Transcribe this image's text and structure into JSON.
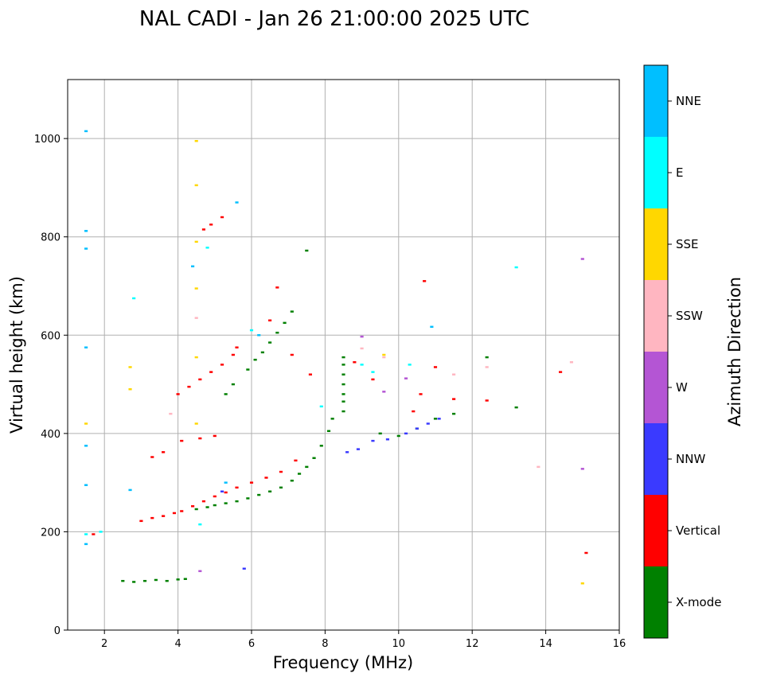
{
  "chart_data": {
    "type": "scatter",
    "title": "NAL CADI - Jan 26 21:00:00 2025 UTC",
    "xlabel": "Frequency (MHz)",
    "ylabel": "Virtual height (km)",
    "xlim": [
      1,
      16
    ],
    "ylim": [
      0,
      1120
    ],
    "xticks": [
      2,
      4,
      6,
      8,
      10,
      12,
      14,
      16
    ],
    "yticks": [
      0,
      200,
      400,
      600,
      800,
      1000
    ],
    "grid": true,
    "colorbar": {
      "label": "Azimuth Direction",
      "categories": [
        {
          "name": "X-mode",
          "color": "#008000"
        },
        {
          "name": "Vertical",
          "color": "#ff0000"
        },
        {
          "name": "NNW",
          "color": "#3a3aff"
        },
        {
          "name": "W",
          "color": "#b455d4"
        },
        {
          "name": "SSW",
          "color": "#ffb6c1"
        },
        {
          "name": "SSE",
          "color": "#ffd700"
        },
        {
          "name": "E",
          "color": "#00ffff"
        },
        {
          "name": "NNE",
          "color": "#00bfff"
        }
      ]
    },
    "series": [
      {
        "name": "X-mode",
        "points": [
          [
            2.5,
            100
          ],
          [
            2.8,
            98
          ],
          [
            3.1,
            100
          ],
          [
            3.4,
            102
          ],
          [
            3.7,
            100
          ],
          [
            4.0,
            103
          ],
          [
            4.2,
            104
          ],
          [
            4.5,
            246
          ],
          [
            4.8,
            250
          ],
          [
            5.0,
            254
          ],
          [
            5.3,
            258
          ],
          [
            5.6,
            262
          ],
          [
            5.9,
            268
          ],
          [
            6.2,
            275
          ],
          [
            6.5,
            282
          ],
          [
            6.8,
            290
          ],
          [
            7.1,
            304
          ],
          [
            7.3,
            318
          ],
          [
            7.5,
            332
          ],
          [
            7.7,
            350
          ],
          [
            7.9,
            375
          ],
          [
            8.1,
            405
          ],
          [
            8.2,
            430
          ],
          [
            8.5,
            445
          ],
          [
            8.5,
            465
          ],
          [
            8.5,
            480
          ],
          [
            8.5,
            500
          ],
          [
            8.5,
            520
          ],
          [
            8.5,
            540
          ],
          [
            8.5,
            555
          ],
          [
            9.5,
            400
          ],
          [
            10.0,
            395
          ],
          [
            10.5,
            410
          ],
          [
            11.0,
            430
          ],
          [
            11.5,
            440
          ],
          [
            12.4,
            555
          ],
          [
            13.2,
            453
          ],
          [
            5.3,
            480
          ],
          [
            5.5,
            500
          ],
          [
            5.9,
            530
          ],
          [
            6.1,
            550
          ],
          [
            6.3,
            565
          ],
          [
            6.5,
            585
          ],
          [
            6.7,
            605
          ],
          [
            6.9,
            625
          ],
          [
            7.1,
            648
          ],
          [
            7.5,
            772
          ]
        ]
      },
      {
        "name": "Vertical",
        "points": [
          [
            1.7,
            195
          ],
          [
            3.0,
            222
          ],
          [
            3.3,
            228
          ],
          [
            3.6,
            232
          ],
          [
            3.9,
            238
          ],
          [
            4.1,
            242
          ],
          [
            4.4,
            252
          ],
          [
            4.7,
            262
          ],
          [
            5.0,
            272
          ],
          [
            5.3,
            280
          ],
          [
            5.6,
            290
          ],
          [
            6.0,
            300
          ],
          [
            6.4,
            310
          ],
          [
            6.8,
            322
          ],
          [
            7.2,
            345
          ],
          [
            3.3,
            352
          ],
          [
            3.6,
            362
          ],
          [
            4.1,
            385
          ],
          [
            4.6,
            390
          ],
          [
            5.0,
            395
          ],
          [
            4.0,
            480
          ],
          [
            4.3,
            495
          ],
          [
            4.6,
            510
          ],
          [
            4.9,
            525
          ],
          [
            5.2,
            540
          ],
          [
            5.5,
            560
          ],
          [
            5.6,
            575
          ],
          [
            4.7,
            815
          ],
          [
            4.9,
            825
          ],
          [
            5.2,
            840
          ],
          [
            6.5,
            630
          ],
          [
            6.7,
            697
          ],
          [
            7.1,
            560
          ],
          [
            7.6,
            520
          ],
          [
            8.8,
            545
          ],
          [
            9.3,
            510
          ],
          [
            10.4,
            445
          ],
          [
            10.6,
            480
          ],
          [
            10.7,
            710
          ],
          [
            11.0,
            535
          ],
          [
            11.5,
            470
          ],
          [
            12.4,
            467
          ],
          [
            14.4,
            525
          ],
          [
            15.1,
            157
          ]
        ]
      },
      {
        "name": "NNW",
        "points": [
          [
            8.6,
            362
          ],
          [
            8.9,
            368
          ],
          [
            9.3,
            385
          ],
          [
            9.7,
            388
          ],
          [
            10.2,
            400
          ],
          [
            10.5,
            410
          ],
          [
            10.8,
            420
          ],
          [
            11.1,
            430
          ],
          [
            5.8,
            125
          ],
          [
            5.2,
            282
          ]
        ]
      },
      {
        "name": "W",
        "points": [
          [
            9.0,
            597
          ],
          [
            9.6,
            485
          ],
          [
            10.2,
            512
          ],
          [
            15.0,
            755
          ],
          [
            15.0,
            328
          ],
          [
            4.6,
            120
          ]
        ]
      },
      {
        "name": "SSW",
        "points": [
          [
            9.0,
            573
          ],
          [
            9.6,
            555
          ],
          [
            11.5,
            520
          ],
          [
            12.4,
            535
          ],
          [
            13.8,
            332
          ],
          [
            14.7,
            545
          ],
          [
            4.5,
            635
          ],
          [
            3.8,
            440
          ]
        ]
      },
      {
        "name": "SSE",
        "points": [
          [
            1.5,
            420
          ],
          [
            4.5,
            995
          ],
          [
            4.5,
            905
          ],
          [
            4.5,
            790
          ],
          [
            4.5,
            695
          ],
          [
            4.5,
            555
          ],
          [
            4.5,
            420
          ],
          [
            9.6,
            560
          ],
          [
            15.0,
            95
          ],
          [
            2.7,
            535
          ],
          [
            2.7,
            490
          ]
        ]
      },
      {
        "name": "E",
        "points": [
          [
            1.5,
            195
          ],
          [
            1.9,
            200
          ],
          [
            4.8,
            778
          ],
          [
            6.0,
            610
          ],
          [
            7.9,
            455
          ],
          [
            9.0,
            540
          ],
          [
            9.3,
            525
          ],
          [
            10.3,
            540
          ],
          [
            13.2,
            738
          ],
          [
            2.8,
            675
          ],
          [
            4.6,
            215
          ]
        ]
      },
      {
        "name": "NNE",
        "points": [
          [
            1.5,
            1015
          ],
          [
            1.5,
            812
          ],
          [
            1.5,
            776
          ],
          [
            1.5,
            575
          ],
          [
            1.5,
            375
          ],
          [
            1.5,
            295
          ],
          [
            1.5,
            175
          ],
          [
            4.4,
            740
          ],
          [
            5.6,
            870
          ],
          [
            10.9,
            617
          ],
          [
            6.2,
            600
          ],
          [
            5.3,
            300
          ],
          [
            2.7,
            285
          ]
        ]
      }
    ]
  }
}
